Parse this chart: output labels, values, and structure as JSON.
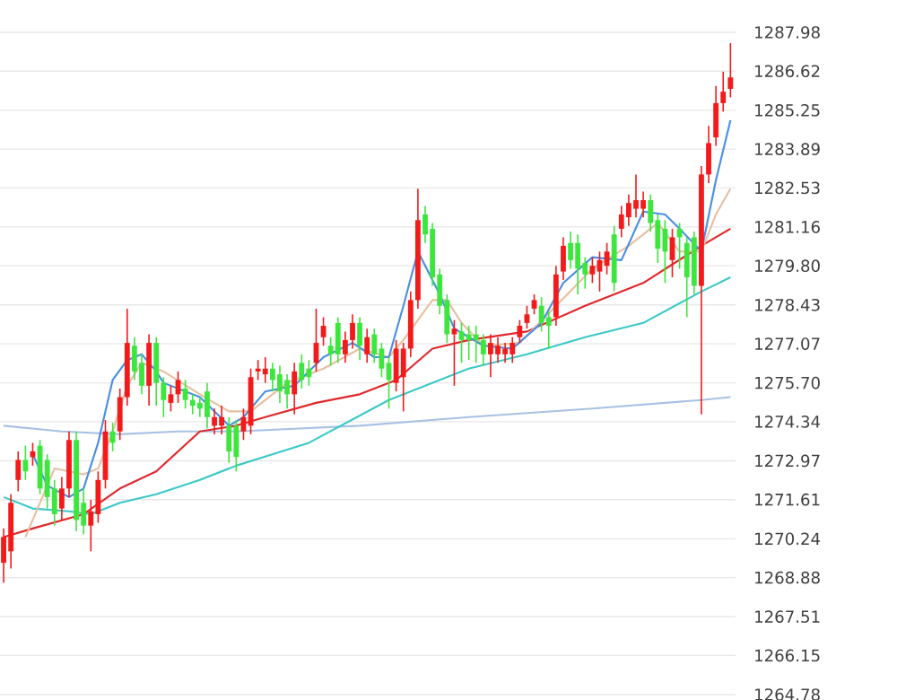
{
  "chart_data": {
    "type": "candlestick",
    "categories": [
      null,
      null,
      null,
      null,
      null,
      null,
      null,
      null,
      null,
      null,
      null,
      null,
      null,
      null,
      null,
      null,
      null,
      null,
      null,
      null,
      null,
      null,
      null,
      null,
      null,
      null,
      null,
      null,
      null,
      null,
      null,
      null,
      null,
      null,
      null,
      null,
      null,
      null,
      null,
      null,
      null,
      null,
      null,
      null,
      null,
      null,
      null,
      null,
      null,
      null,
      null,
      null,
      null,
      null,
      null,
      null,
      null,
      null,
      null,
      null,
      null,
      null,
      null,
      null,
      null,
      null,
      null,
      null,
      null,
      null,
      null,
      null,
      null,
      null,
      null,
      null,
      null,
      null,
      null,
      null,
      null,
      null,
      null,
      null,
      null,
      null,
      null,
      null,
      null,
      null,
      null,
      null,
      null,
      null,
      null,
      null,
      null,
      null,
      null,
      null,
      null
    ],
    "ohlc": [
      [
        1269.4,
        1270.6,
        1268.7,
        1270.3
      ],
      [
        1269.8,
        1271.8,
        1269.2,
        1271.5
      ],
      [
        1272.3,
        1273.3,
        1271.9,
        1273.0
      ],
      [
        1273.0,
        1273.5,
        1272.3,
        1272.6
      ],
      [
        1273.1,
        1273.6,
        1272.8,
        1273.3
      ],
      [
        1273.5,
        1273.7,
        1271.8,
        1272.0
      ],
      [
        1273.0,
        1273.2,
        1271.3,
        1271.7
      ],
      [
        1272.0,
        1272.3,
        1270.7,
        1271.1
      ],
      [
        1271.3,
        1272.4,
        1270.9,
        1272.0
      ],
      [
        1272.0,
        1274.0,
        1271.7,
        1273.7
      ],
      [
        1273.7,
        1274.0,
        1270.5,
        1270.9
      ],
      [
        1271.5,
        1272.0,
        1270.4,
        1270.7
      ],
      [
        1270.7,
        1271.6,
        1269.8,
        1271.2
      ],
      [
        1271.1,
        1272.6,
        1270.8,
        1272.3
      ],
      [
        1272.3,
        1274.4,
        1272.0,
        1274.0
      ],
      [
        1274.0,
        1274.3,
        1273.3,
        1273.6
      ],
      [
        1274.0,
        1275.5,
        1273.7,
        1275.2
      ],
      [
        1275.2,
        1278.3,
        1274.9,
        1277.1
      ],
      [
        1277.0,
        1277.3,
        1275.8,
        1276.1
      ],
      [
        1276.4,
        1276.7,
        1275.3,
        1275.6
      ],
      [
        1275.6,
        1277.4,
        1274.9,
        1277.1
      ],
      [
        1277.1,
        1277.3,
        1274.9,
        1275.7
      ],
      [
        1275.7,
        1275.9,
        1274.5,
        1275.1
      ],
      [
        1275.0,
        1275.6,
        1274.7,
        1275.3
      ],
      [
        1275.3,
        1276.1,
        1275.0,
        1275.8
      ],
      [
        1275.5,
        1275.8,
        1274.8,
        1275.1
      ],
      [
        1275.1,
        1275.3,
        1274.6,
        1274.9
      ],
      [
        1275.0,
        1275.2,
        1274.5,
        1274.8
      ],
      [
        1275.4,
        1275.7,
        1274.1,
        1274.5
      ],
      [
        1274.2,
        1274.8,
        1273.9,
        1274.5
      ],
      [
        1274.2,
        1274.9,
        1273.9,
        1274.5
      ],
      [
        1274.2,
        1274.5,
        1272.9,
        1273.3
      ],
      [
        1274.2,
        1274.4,
        1272.6,
        1273.1
      ],
      [
        1274.0,
        1274.8,
        1273.7,
        1274.5
      ],
      [
        1274.2,
        1276.2,
        1273.9,
        1275.9
      ],
      [
        1276.1,
        1276.5,
        1275.8,
        1276.2
      ],
      [
        1276.0,
        1276.6,
        1275.7,
        1276.2
      ],
      [
        1276.2,
        1276.4,
        1275.4,
        1275.8
      ],
      [
        1276.0,
        1276.3,
        1275.0,
        1275.4
      ],
      [
        1275.8,
        1276.0,
        1274.8,
        1275.3
      ],
      [
        1275.3,
        1276.4,
        1274.6,
        1276.1
      ],
      [
        1276.4,
        1276.7,
        1275.5,
        1275.8
      ],
      [
        1276.2,
        1276.5,
        1275.6,
        1275.9
      ],
      [
        1276.4,
        1278.3,
        1276.1,
        1277.1
      ],
      [
        1277.3,
        1278.0,
        1277.0,
        1277.7
      ],
      [
        1277.0,
        1277.3,
        1276.3,
        1276.7
      ],
      [
        1277.8,
        1278.0,
        1276.4,
        1276.7
      ],
      [
        1276.7,
        1277.5,
        1276.4,
        1277.2
      ],
      [
        1277.2,
        1278.1,
        1276.9,
        1277.8
      ],
      [
        1277.8,
        1278.0,
        1276.5,
        1277.0
      ],
      [
        1276.7,
        1277.6,
        1276.4,
        1277.3
      ],
      [
        1277.4,
        1277.6,
        1276.4,
        1276.7
      ],
      [
        1276.9,
        1277.1,
        1275.9,
        1276.2
      ],
      [
        1276.4,
        1276.6,
        1274.8,
        1275.8
      ],
      [
        1275.7,
        1277.2,
        1275.4,
        1276.9
      ],
      [
        1275.9,
        1277.1,
        1274.7,
        1276.9
      ],
      [
        1276.9,
        1278.9,
        1276.6,
        1278.6
      ],
      [
        1278.6,
        1282.5,
        1278.3,
        1281.4
      ],
      [
        1281.6,
        1281.9,
        1280.6,
        1280.9
      ],
      [
        1281.1,
        1281.3,
        1279.1,
        1279.4
      ],
      [
        1279.5,
        1279.7,
        1278.1,
        1278.4
      ],
      [
        1278.6,
        1278.8,
        1277.1,
        1277.4
      ],
      [
        1277.4,
        1277.9,
        1275.6,
        1277.6
      ],
      [
        1277.5,
        1277.8,
        1276.4,
        1277.2
      ],
      [
        1277.4,
        1277.7,
        1276.5,
        1277.2
      ],
      [
        1277.4,
        1277.7,
        1276.4,
        1277.2
      ],
      [
        1277.2,
        1277.4,
        1276.3,
        1276.7
      ],
      [
        1276.7,
        1277.4,
        1275.9,
        1277.1
      ],
      [
        1276.7,
        1277.3,
        1276.4,
        1277.0
      ],
      [
        1276.7,
        1277.1,
        1276.4,
        1276.9
      ],
      [
        1276.7,
        1277.3,
        1276.4,
        1277.1
      ],
      [
        1277.3,
        1277.9,
        1277.1,
        1277.7
      ],
      [
        1277.8,
        1278.4,
        1277.6,
        1278.1
      ],
      [
        1278.3,
        1278.8,
        1278.1,
        1278.6
      ],
      [
        1278.4,
        1278.7,
        1277.5,
        1277.8
      ],
      [
        1278.0,
        1278.2,
        1276.9,
        1277.7
      ],
      [
        1278.0,
        1279.8,
        1277.7,
        1279.5
      ],
      [
        1279.6,
        1280.8,
        1279.3,
        1280.5
      ],
      [
        1280.6,
        1281.0,
        1279.7,
        1280.0
      ],
      [
        1280.6,
        1280.9,
        1278.8,
        1279.7
      ],
      [
        1279.9,
        1280.1,
        1279.0,
        1279.5
      ],
      [
        1279.5,
        1280.1,
        1279.2,
        1279.8
      ],
      [
        1279.6,
        1280.3,
        1278.9,
        1280.0
      ],
      [
        1279.8,
        1280.6,
        1279.5,
        1280.3
      ],
      [
        1280.9,
        1281.2,
        1278.9,
        1279.2
      ],
      [
        1281.1,
        1281.9,
        1280.8,
        1281.6
      ],
      [
        1281.5,
        1282.3,
        1281.2,
        1282.0
      ],
      [
        1281.8,
        1283.0,
        1281.5,
        1282.1
      ],
      [
        1281.8,
        1282.4,
        1281.5,
        1282.1
      ],
      [
        1282.1,
        1282.3,
        1281.0,
        1281.3
      ],
      [
        1281.4,
        1281.6,
        1279.9,
        1280.4
      ],
      [
        1281.1,
        1281.4,
        1279.2,
        1280.3
      ],
      [
        1280.0,
        1281.1,
        1279.4,
        1280.8
      ],
      [
        1281.1,
        1281.3,
        1279.7,
        1280.8
      ],
      [
        1280.6,
        1280.8,
        1278.0,
        1279.4
      ],
      [
        1280.8,
        1281.0,
        1278.8,
        1279.1
      ],
      [
        1279.1,
        1283.3,
        1274.6,
        1283.0
      ],
      [
        1283.0,
        1284.7,
        1282.7,
        1284.1
      ],
      [
        1284.3,
        1286.1,
        1284.0,
        1285.5
      ],
      [
        1285.5,
        1286.6,
        1285.2,
        1285.9
      ],
      [
        1286.0,
        1287.6,
        1285.7,
        1286.4
      ]
    ],
    "colors": [
      "#f21a1a",
      "#f21a1a",
      "#f21a1a",
      "#3de63d",
      "#f21a1a",
      "#3de63d",
      "#3de63d",
      "#3de63d",
      "#f21a1a",
      "#f21a1a",
      "#3de63d",
      "#3de63d",
      "#f21a1a",
      "#f21a1a",
      "#f21a1a",
      "#3de63d",
      "#f21a1a",
      "#f21a1a",
      "#3de63d",
      "#3de63d",
      "#f21a1a",
      "#3de63d",
      "#3de63d",
      "#f21a1a",
      "#f21a1a",
      "#3de63d",
      "#3de63d",
      "#3de63d",
      "#3de63d",
      "#f21a1a",
      "#f21a1a",
      "#3de63d",
      "#3de63d",
      "#f21a1a",
      "#f21a1a",
      "#f21a1a",
      "#f21a1a",
      "#3de63d",
      "#3de63d",
      "#3de63d",
      "#f21a1a",
      "#3de63d",
      "#3de63d",
      "#f21a1a",
      "#f21a1a",
      "#3de63d",
      "#3de63d",
      "#f21a1a",
      "#f21a1a",
      "#3de63d",
      "#f21a1a",
      "#3de63d",
      "#3de63d",
      "#3de63d",
      "#f21a1a",
      "#f21a1a",
      "#f21a1a",
      "#f21a1a",
      "#3de63d",
      "#3de63d",
      "#3de63d",
      "#3de63d",
      "#f21a1a",
      "#3de63d",
      "#3de63d",
      "#3de63d",
      "#3de63d",
      "#f21a1a",
      "#f21a1a",
      "#f21a1a",
      "#f21a1a",
      "#f21a1a",
      "#f21a1a",
      "#f21a1a",
      "#3de63d",
      "#3de63d",
      "#f21a1a",
      "#f21a1a",
      "#3de63d",
      "#3de63d",
      "#3de63d",
      "#f21a1a",
      "#f21a1a",
      "#f21a1a",
      "#3de63d",
      "#f21a1a",
      "#f21a1a",
      "#f21a1a",
      "#f21a1a",
      "#3de63d",
      "#3de63d",
      "#3de63d",
      "#f21a1a",
      "#3de63d",
      "#3de63d",
      "#3de63d",
      "#f21a1a",
      "#f21a1a",
      "#f21a1a",
      "#f21a1a",
      "#f21a1a"
    ],
    "series": [
      {
        "type": "line",
        "color": "#a9c1e3",
        "values": [
          1274.2,
          null,
          null,
          null,
          null,
          null,
          null,
          null,
          1274.0,
          null,
          null,
          null,
          null,
          null,
          null,
          null,
          1273.9,
          null,
          null,
          null,
          null,
          null,
          null,
          null,
          1274.0,
          null,
          null,
          null,
          null,
          null,
          null,
          null,
          1274.0,
          null,
          null,
          null,
          null,
          null,
          null,
          null,
          null,
          null,
          null,
          null,
          null,
          null,
          null,
          null,
          null,
          1274.2,
          null,
          null,
          null,
          null,
          null,
          null,
          null,
          null,
          null,
          null,
          null,
          null,
          null,
          null,
          1274.5,
          null,
          null,
          null,
          null,
          null,
          null,
          null,
          null,
          null,
          null,
          null,
          null,
          null,
          null,
          null,
          null,
          1274.8,
          null,
          null,
          null,
          null,
          null,
          null,
          null,
          null,
          null,
          null,
          null,
          null,
          null,
          null,
          1275.1,
          null,
          null,
          null,
          1275.2
        ]
      },
      {
        "type": "line",
        "color": "#3cc8c8",
        "values": [
          1271.7,
          null,
          null,
          null,
          1271.3,
          null,
          null,
          null,
          null,
          1271.2,
          null,
          null,
          1271.1,
          null,
          null,
          null,
          1271.5,
          null,
          null,
          null,
          null,
          1271.8,
          null,
          null,
          null,
          null,
          null,
          1272.3,
          null,
          null,
          null,
          null,
          1272.8,
          null,
          null,
          null,
          null,
          null,
          null,
          null,
          null,
          null,
          1273.6,
          null,
          null,
          null,
          null,
          null,
          null,
          null,
          null,
          null,
          null,
          1275.1,
          null,
          null,
          null,
          null,
          null,
          null,
          null,
          null,
          null,
          null,
          1276.2,
          null,
          null,
          null,
          null,
          null,
          null,
          null,
          1276.7,
          null,
          null,
          null,
          null,
          null,
          null,
          null,
          1277.3,
          null,
          null,
          null,
          null,
          null,
          null,
          null,
          1277.8,
          null,
          null,
          null,
          null,
          null,
          null,
          null,
          1278.9,
          null,
          null,
          null,
          1279.4
        ]
      },
      {
        "type": "line",
        "color": "#e0282c",
        "values": [
          1270.3,
          null,
          null,
          null,
          1270.6,
          null,
          null,
          null,
          null,
          null,
          null,
          1271.1,
          null,
          null,
          null,
          null,
          1272.0,
          null,
          null,
          null,
          null,
          1272.6,
          null,
          null,
          null,
          null,
          null,
          1274.0,
          null,
          null,
          null,
          null,
          1274.2,
          null,
          null,
          null,
          1274.5,
          null,
          null,
          null,
          null,
          null,
          null,
          1275.0,
          null,
          null,
          null,
          null,
          null,
          1275.3,
          null,
          null,
          null,
          null,
          1275.8,
          null,
          null,
          null,
          null,
          1276.9,
          null,
          null,
          null,
          null,
          1277.2,
          null,
          null,
          null,
          null,
          null,
          null,
          null,
          1277.5,
          null,
          null,
          null,
          null,
          null,
          null,
          null,
          1278.4,
          null,
          null,
          null,
          null,
          null,
          null,
          null,
          1279.2,
          null,
          null,
          null,
          null,
          null,
          null,
          null,
          1280.5,
          null,
          null,
          null,
          1281.1
        ]
      },
      {
        "type": "line",
        "color": "#e8bfa0",
        "values": [
          null,
          null,
          null,
          1270.3,
          null,
          null,
          null,
          1272.7,
          null,
          null,
          null,
          1272.5,
          null,
          1272.7,
          null,
          1274.0,
          null,
          1275.6,
          null,
          1276.4,
          null,
          null,
          1276.1,
          null,
          null,
          null,
          null,
          1275.3,
          null,
          null,
          null,
          1274.7,
          null,
          null,
          1274.7,
          null,
          null,
          null,
          null,
          1275.7,
          null,
          null,
          null,
          null,
          1276.2,
          null,
          null,
          null,
          null,
          1276.9,
          null,
          null,
          null,
          1276.6,
          null,
          1277.2,
          null,
          null,
          null,
          1278.6,
          null,
          1278.6,
          null,
          1277.8,
          null,
          null,
          1277.0,
          null,
          null,
          null,
          null,
          1277.1,
          null,
          null,
          null,
          null,
          1278.4,
          null,
          null,
          null,
          null,
          1279.7,
          null,
          null,
          null,
          null,
          1280.5,
          null,
          null,
          null,
          1281.3,
          null,
          null,
          1280.3,
          null,
          null,
          1280.3,
          null,
          1281.6,
          null,
          1282.5
        ]
      },
      {
        "type": "line",
        "color": "#4a8fe2",
        "values": [
          null,
          null,
          null,
          null,
          1273.2,
          null,
          1272.1,
          null,
          null,
          1271.7,
          null,
          1272.0,
          null,
          1273.6,
          null,
          1275.8,
          null,
          1276.5,
          null,
          1276.7,
          null,
          1276.1,
          1275.7,
          null,
          null,
          null,
          null,
          1275.2,
          null,
          null,
          null,
          1274.2,
          null,
          1274.5,
          null,
          null,
          1275.4,
          null,
          null,
          null,
          1275.6,
          null,
          null,
          null,
          1276.6,
          null,
          null,
          null,
          1277.1,
          null,
          null,
          1276.6,
          null,
          1276.6,
          null,
          1278.4,
          null,
          1280.3,
          null,
          null,
          1278.8,
          null,
          1277.6,
          null,
          null,
          null,
          1277.0,
          null,
          null,
          null,
          1276.9,
          null,
          null,
          null,
          1277.8,
          null,
          null,
          1279.2,
          null,
          null,
          null,
          1280.1,
          null,
          null,
          null,
          1280.0,
          null,
          null,
          1281.7,
          null,
          null,
          1281.6,
          null,
          1281.1,
          null,
          null,
          1280.3,
          null,
          1282.8,
          null,
          1284.9
        ]
      }
    ],
    "ylim": [
      1264.78,
      1287.98
    ],
    "yticks": [
      1264.78,
      1266.15,
      1267.51,
      1268.88,
      1270.24,
      1271.61,
      1272.97,
      1274.34,
      {
        "value": 1275.7,
        "label": "1275.70"
      },
      1277.07,
      1278.43,
      {
        "value": 1279.8,
        "label": "1279.80"
      },
      1281.16,
      1282.53,
      1283.89,
      1285.25,
      1286.62,
      1287.98
    ],
    "grid": "y",
    "tick_labels": "y"
  }
}
